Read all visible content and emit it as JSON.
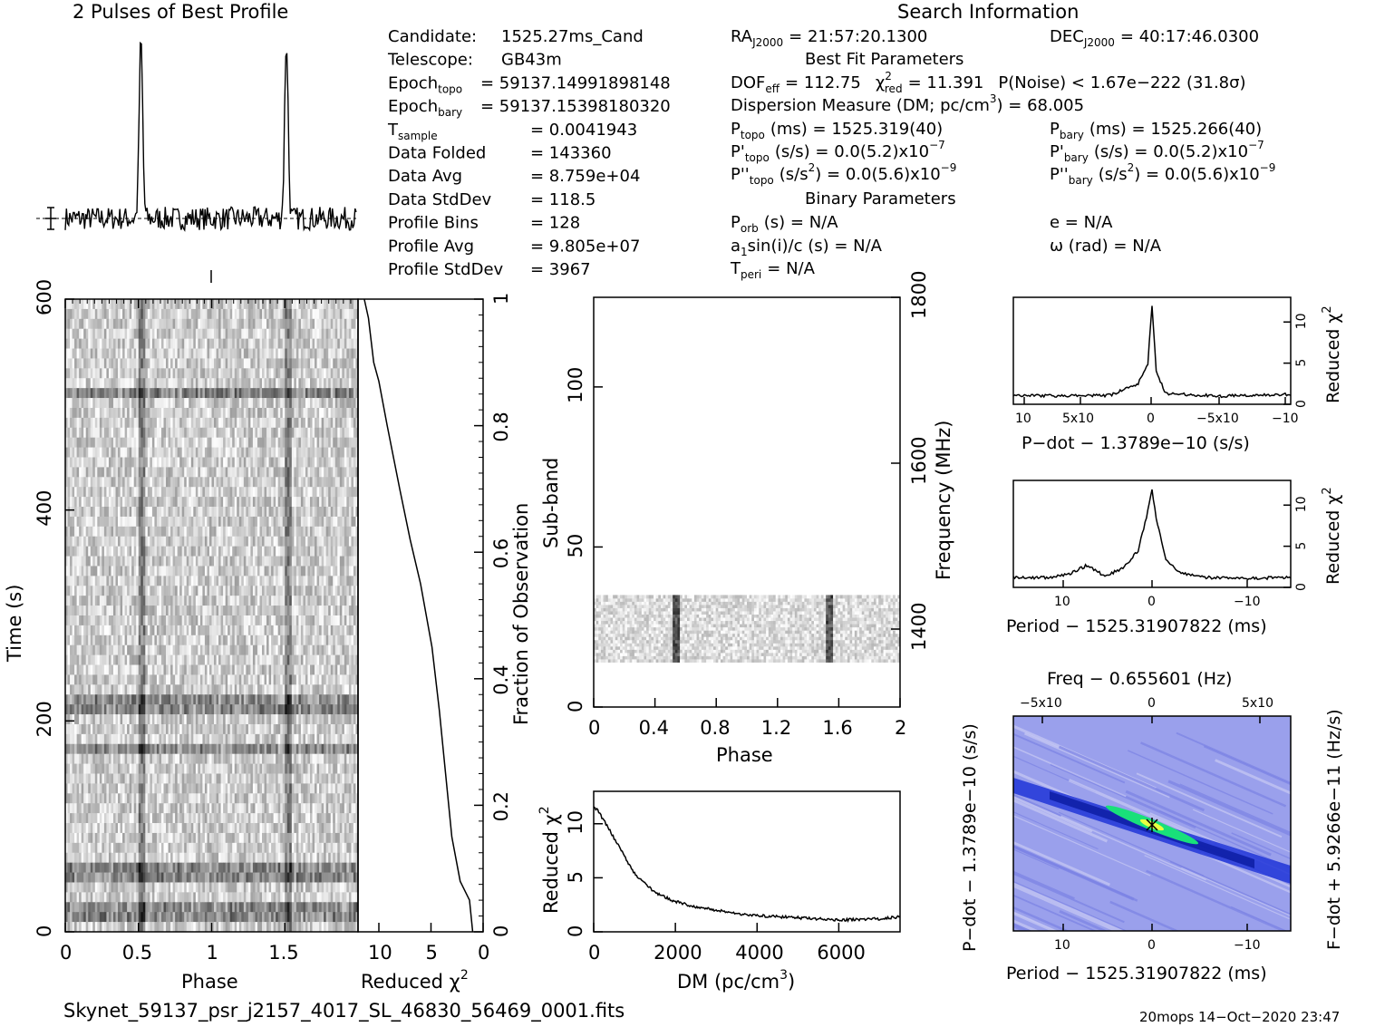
{
  "titles": {
    "profile": "2 Pulses of Best Profile",
    "search": "Search Information",
    "best_fit": "Best Fit Parameters",
    "binary": "Binary Parameters"
  },
  "candidate_info": [
    {
      "label": "Candidate:",
      "value": "1525.27ms_Cand"
    },
    {
      "label": "Telescope:",
      "value": "GB43m"
    },
    {
      "label": "Epoch",
      "sub": "topo",
      "value": "= 59137.14991898148"
    },
    {
      "label": "Epoch",
      "sub": "bary",
      "value": "= 59137.15398180320"
    },
    {
      "label": "T",
      "sub": "sample",
      "value": "=   0.0041943"
    },
    {
      "label": "Data Folded",
      "value": "=   143360"
    },
    {
      "label": "Data Avg",
      "value": "=   8.759e+04"
    },
    {
      "label": "Data StdDev",
      "value": "=   118.5"
    },
    {
      "label": "Profile Bins",
      "value": "=   128"
    },
    {
      "label": "Profile Avg",
      "value": "=   9.805e+07"
    },
    {
      "label": "Profile StdDev",
      "value": "=   3967"
    }
  ],
  "search_info": {
    "ra": "RA",
    "ra_sub": "J2000",
    "ra_value": "= 21:57:20.1300",
    "dec": "DEC",
    "dec_sub": "J2000",
    "dec_value": "= 40:17:46.0300",
    "dof": "DOF",
    "dof_sub": "eff",
    "dof_value": "= 112.75",
    "chi": "χ",
    "chi_sup": "2",
    "chi_sub": "red",
    "chi_value": "= 11.391",
    "pnoise": "P(Noise) < 1.67e−222   (31.8σ)",
    "dm_text": "Dispersion Measure (DM; pc/cm",
    "dm_sup": "3",
    "dm_value": ") = 68.005",
    "ptopo": "P",
    "ptopo_sub": "topo",
    "ptopo_value": "(ms) =   1525.319(40)",
    "pbary": "P",
    "pbary_sub": "bary",
    "pbary_value": "(ms) =   1525.266(40)",
    "pdtopo": "P'",
    "pdtopo_sub": "topo",
    "pdtopo_value": "(s/s) = 0.0(5.2)x10",
    "pdtopo_exp": "−7",
    "pdbary": "P'",
    "pdbary_sub": "bary",
    "pdbary_value": "(s/s) = 0.0(5.2)x10",
    "pdbary_exp": "−7",
    "pddtopo": "P''",
    "pddtopo_sub": "topo",
    "pddtopo_value1": "(s/s",
    "pddtopo_sup": "2",
    "pddtopo_value2": ") = 0.0(5.6)x10",
    "pddtopo_exp": "−9",
    "pddbary": "P''",
    "pddbary_sub": "bary",
    "pddbary_value1": "(s/s",
    "pddbary_sup": "2",
    "pddbary_value2": ") = 0.0(5.6)x10",
    "pddbary_exp": "−9",
    "porb": "P",
    "porb_sub": "orb",
    "porb_value": "(s) = N/A",
    "ecc": "e = N/A",
    "a1_pre": "a",
    "a1_sub": "1",
    "a1_value": "sin(i)/c (s) = N/A",
    "omega": "ω (rad) = N/A",
    "tperi": "T",
    "tperi_sub": "peri",
    "tperi_value": "= N/A"
  },
  "footer": {
    "filename": "Skynet_59137_psr_j2157_4017_SL_46830_56469_0001.fits",
    "stamp": "20mops 14−Oct−2020 23:47"
  },
  "colors": {
    "axis": "#000000",
    "greyscale_dark": "#222222",
    "greyscale_light": "#f2f2f2",
    "ppdot_low": "#9aa0ec",
    "ppdot_mid": "#1a2fd0",
    "ppdot_high": "#19e07a",
    "ppdot_peak": "#e8ff40"
  },
  "chart_data": [
    {
      "id": "profile",
      "type": "line",
      "title": "2 Pulses of Best Profile",
      "x": "phase",
      "xlim": [
        0,
        2
      ],
      "pulse_peaks_phase": [
        0.52,
        1.52
      ],
      "peak_relative_height": 1.0,
      "baseline_relative": 0.0,
      "error_bar_label": "1σ"
    },
    {
      "id": "time-phase",
      "type": "heatmap",
      "xlabel": "Phase",
      "ylabel": "Time (s)",
      "xlim": [
        0,
        2
      ],
      "ylim": [
        0,
        600
      ],
      "xticks": [
        "0",
        "0.5",
        "1",
        "1.5"
      ],
      "yticks": [
        "0",
        "200",
        "400",
        "600"
      ],
      "pulse_phases": [
        0.52,
        1.52
      ],
      "bright_rows_time_s": [
        20,
        55,
        175,
        215,
        510
      ]
    },
    {
      "id": "reduced-chi2-vs-time",
      "type": "line",
      "xlabel": "Reduced χ",
      "xlabel_sup": "2",
      "ylabel": "Fraction of Observation",
      "xlim": [
        12,
        0
      ],
      "ylim": [
        0,
        1
      ],
      "xticks": [
        "10",
        "5",
        "0"
      ],
      "yticks": [
        "0",
        "0.2",
        "0.4",
        "0.6",
        "0.8",
        "1"
      ],
      "points": [
        [
          1.0,
          0.0
        ],
        [
          1.3,
          0.05
        ],
        [
          2.2,
          0.08
        ],
        [
          3.0,
          0.15
        ],
        [
          3.6,
          0.25
        ],
        [
          4.2,
          0.35
        ],
        [
          4.9,
          0.45
        ],
        [
          6.0,
          0.55
        ],
        [
          7.0,
          0.62
        ],
        [
          8.0,
          0.7
        ],
        [
          9.2,
          0.8
        ],
        [
          10.0,
          0.87
        ],
        [
          10.5,
          0.9
        ],
        [
          11.0,
          0.97
        ],
        [
          11.4,
          1.0
        ]
      ]
    },
    {
      "id": "subband-phase",
      "type": "heatmap",
      "xlabel": "Phase",
      "ylabel": "Sub-band",
      "ylabel_right": "Frequency (MHz)",
      "xlim": [
        0,
        2
      ],
      "ylim": [
        0,
        128
      ],
      "xticks": [
        "0",
        "0.4",
        "0.8",
        "1.2",
        "1.6",
        "2"
      ],
      "yticks": [
        "0",
        "50",
        "100"
      ],
      "yticks_right": [
        "1400",
        "1600",
        "1800"
      ],
      "filled_subbands": [
        14,
        35
      ],
      "pulse_phases": [
        0.54,
        1.54
      ]
    },
    {
      "id": "dm-curve",
      "type": "line",
      "xlabel": "DM (pc/cm",
      "xlabel_sup": "3",
      "xlabel_end": ")",
      "ylabel": "Reduced χ",
      "ylabel_sup": "2",
      "xlim": [
        0,
        7500
      ],
      "ylim": [
        0,
        13
      ],
      "xticks": [
        "0",
        "2000",
        "4000",
        "6000"
      ],
      "yticks": [
        "0",
        "5",
        "10"
      ],
      "points": [
        [
          0,
          11.5
        ],
        [
          100,
          11.2
        ],
        [
          300,
          10.0
        ],
        [
          600,
          8.0
        ],
        [
          1000,
          5.4
        ],
        [
          1500,
          3.6
        ],
        [
          2000,
          2.8
        ],
        [
          2500,
          2.3
        ],
        [
          3000,
          2.0
        ],
        [
          3500,
          1.7
        ],
        [
          4000,
          1.5
        ],
        [
          5000,
          1.3
        ],
        [
          6000,
          1.1
        ],
        [
          7000,
          1.2
        ],
        [
          7500,
          1.4
        ]
      ]
    },
    {
      "id": "pdot-curve",
      "type": "line",
      "xlabel": "P−dot − 1.3789e−10 (s/s)",
      "ylabel": "Reduced χ",
      "ylabel_sup": "2",
      "xlim": [
        0.0001,
        -0.0001
      ],
      "ylim": [
        0,
        13
      ],
      "xticks": [
        "10",
        "5x10",
        "0",
        "−5x10",
        "−10"
      ],
      "yticks": [
        "0",
        "5",
        "10"
      ],
      "points": [
        [
          0.0001,
          1.1
        ],
        [
          6e-05,
          1.0
        ],
        [
          3e-05,
          1.1
        ],
        [
          1e-05,
          2.5
        ],
        [
          3e-06,
          5.0
        ],
        [
          0,
          12.0
        ],
        [
          -3e-06,
          4.0
        ],
        [
          -1e-05,
          1.3
        ],
        [
          -5e-05,
          1.0
        ],
        [
          -0.0001,
          1.2
        ]
      ]
    },
    {
      "id": "period-curve",
      "type": "line",
      "xlabel": "Period − 1525.31907822 (ms)",
      "ylabel": "Reduced χ",
      "ylabel_sup": "2",
      "xlim": [
        15,
        -15
      ],
      "ylim": [
        0,
        13
      ],
      "xticks": [
        "10",
        "0",
        "−10"
      ],
      "yticks": [
        "0",
        "5",
        "10"
      ],
      "points": [
        [
          15,
          1.2
        ],
        [
          11,
          1.2
        ],
        [
          9,
          1.6
        ],
        [
          7,
          2.7
        ],
        [
          5,
          1.3
        ],
        [
          3,
          2.5
        ],
        [
          1.5,
          4.5
        ],
        [
          0.5,
          9.0
        ],
        [
          0,
          12.0
        ],
        [
          -0.5,
          8.0
        ],
        [
          -1.5,
          3.5
        ],
        [
          -3,
          1.8
        ],
        [
          -6,
          1.2
        ],
        [
          -10,
          1.1
        ],
        [
          -15,
          1.2
        ]
      ]
    },
    {
      "id": "ppdot-plane",
      "type": "heatmap",
      "title": "Freq − 0.655601 (Hz)",
      "xlabel": "Period − 1525.31907822 (ms)",
      "ylabel": "P−dot − 1.3789e−10 (s/s)",
      "ylabel_right": "F−dot + 5.9266e−11 (Hz/s)",
      "xlim": [
        15,
        -15
      ],
      "ylim": [
        0.0001,
        -0.0001
      ],
      "xticks": [
        "10",
        "0",
        "−10"
      ],
      "top_ticks": [
        "−5x10",
        "0",
        "5x10"
      ],
      "peak": [
        0,
        0
      ]
    }
  ]
}
